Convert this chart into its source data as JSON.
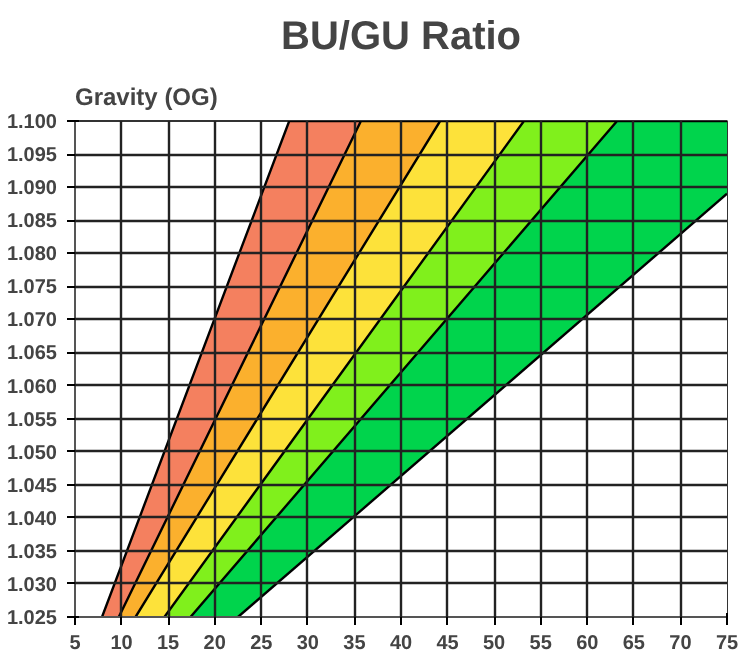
{
  "chart_data": {
    "type": "area",
    "title": "BU/GU Ratio",
    "ylabel": "Gravity (OG)",
    "xlim": [
      5,
      75
    ],
    "ylim": [
      1.025,
      1.1
    ],
    "xticks": [
      5,
      10,
      15,
      20,
      25,
      30,
      35,
      40,
      45,
      50,
      55,
      60,
      65,
      70,
      75
    ],
    "yticks": [
      1.025,
      {
        "value": 1.03,
        "label": "1.030"
      },
      1.035,
      {
        "value": 1.04,
        "label": "1.040"
      },
      1.045,
      {
        "value": 1.05,
        "label": "1.050"
      },
      1.055,
      {
        "value": 1.06,
        "label": "1.060"
      },
      1.065,
      {
        "value": 1.07,
        "label": "1.070"
      },
      1.075,
      {
        "value": 1.08,
        "label": "1.080"
      },
      1.085,
      {
        "value": 1.09,
        "label": "1.090"
      },
      1.095,
      {
        "value": 1.1,
        "label": "1.100"
      }
    ],
    "grid": true,
    "series": [
      {
        "color": "#f4805f",
        "x": [
          7.9,
          28,
          75
        ],
        "values": [
          1.025,
          1.1,
          1.1
        ]
      },
      {
        "color": "#fbb02d",
        "x": [
          9.7,
          35.7,
          75
        ],
        "values": [
          1.025,
          1.1,
          1.1
        ]
      },
      {
        "color": "#fde23a",
        "x": [
          11.5,
          44.2,
          75
        ],
        "values": [
          1.025,
          1.1,
          1.1
        ]
      },
      {
        "color": "#80f01c",
        "x": [
          14.6,
          53.2,
          75
        ],
        "values": [
          1.025,
          1.1,
          1.1
        ]
      },
      {
        "color": "#00d44c",
        "x": [
          17.4,
          63.2,
          75
        ],
        "values": [
          1.025,
          1.1,
          1.1
        ]
      },
      {
        "color": "#ffffff",
        "x": [
          22.5,
          75
        ],
        "values": [
          1.025,
          1.089
        ]
      }
    ]
  }
}
